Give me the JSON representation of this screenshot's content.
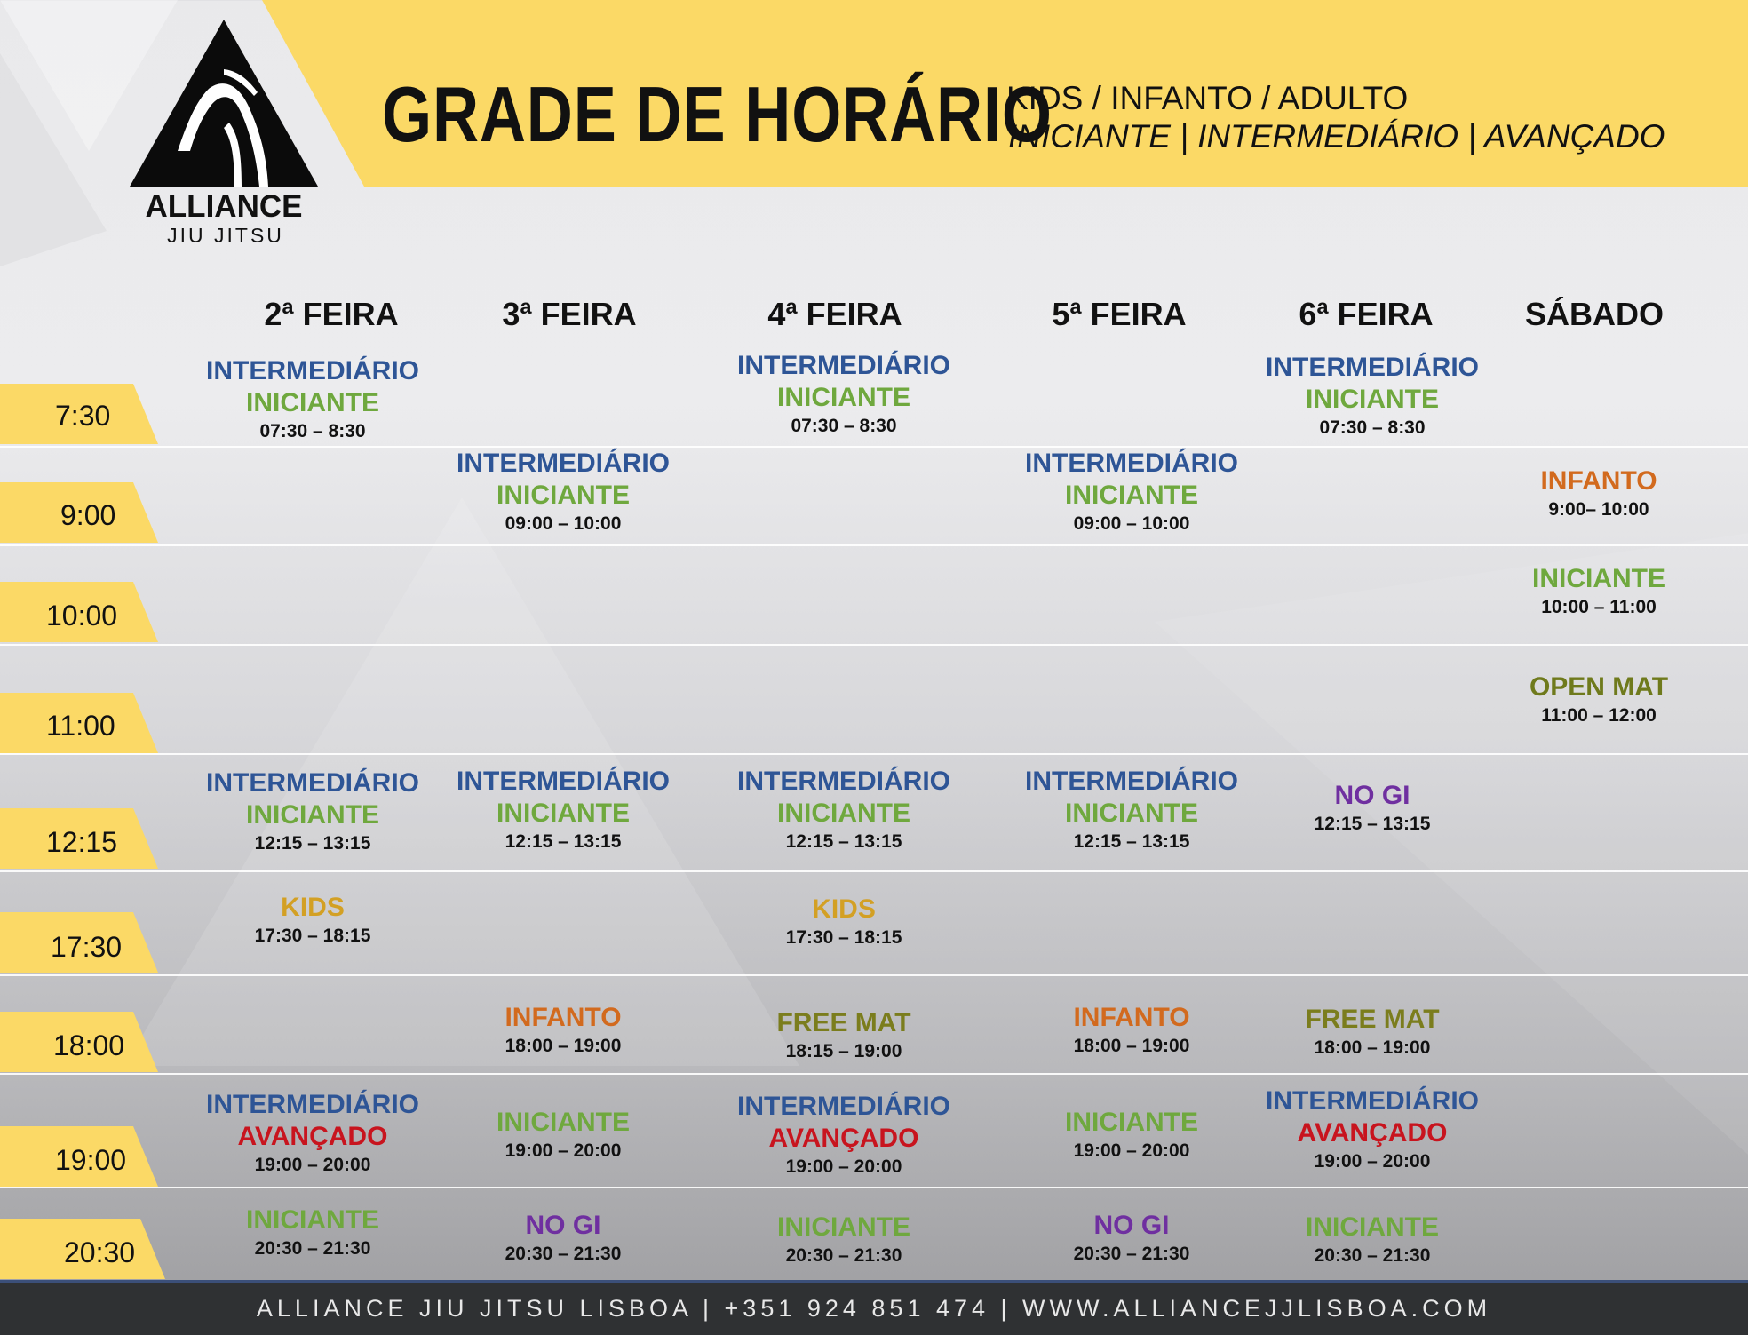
{
  "brand": {
    "name": "ALLIANCE",
    "tagline": "JIU JITSU"
  },
  "header": {
    "title": "GRADE DE HORÁRIO",
    "subtitle_levels": "KIDS / INFANTO / ADULTO",
    "subtitle_ranks": "INICIANTE | INTERMEDIÁRIO | AVANÇADO"
  },
  "days": [
    "2ª FEIRA",
    "3ª FEIRA",
    "4ª FEIRA",
    "5ª FEIRA",
    "6ª FEIRA",
    "SÁBADO"
  ],
  "times": [
    "7:30",
    "9:00",
    "10:00",
    "11:00",
    "12:15",
    "17:30",
    "18:00",
    "19:00",
    "20:30"
  ],
  "category_colors": {
    "INTERMEDIÁRIO": "#2e5596",
    "INICIANTE": "#6fa83e",
    "AVANÇADO": "#c8141e",
    "INFANTO": "#d26a1e",
    "KIDS": "#d3a024",
    "OPEN MAT": "#6f7a1c",
    "FREE MAT": "#7b7d1d",
    "NO GI": "#6f2fa0"
  },
  "accent_color": "#fbd966",
  "footer": {
    "text": "ALLIANCE JIU JITSU LISBOA | +351 924 851 474 | WWW.ALLIANCEJJLISBOA.COM"
  },
  "classes": [
    {
      "day": "2ª FEIRA",
      "slot": "7:30",
      "lines": [
        "INTERMEDIÁRIO",
        "INICIANTE"
      ],
      "time": "07:30 – 8:30"
    },
    {
      "day": "4ª FEIRA",
      "slot": "7:30",
      "lines": [
        "INTERMEDIÁRIO",
        "INICIANTE"
      ],
      "time": "07:30 – 8:30"
    },
    {
      "day": "6ª FEIRA",
      "slot": "7:30",
      "lines": [
        "INTERMEDIÁRIO",
        "INICIANTE"
      ],
      "time": "07:30 – 8:30"
    },
    {
      "day": "3ª FEIRA",
      "slot": "9:00",
      "lines": [
        "INTERMEDIÁRIO",
        "INICIANTE"
      ],
      "time": "09:00 – 10:00"
    },
    {
      "day": "5ª FEIRA",
      "slot": "9:00",
      "lines": [
        "INTERMEDIÁRIO",
        "INICIANTE"
      ],
      "time": "09:00 – 10:00"
    },
    {
      "day": "SÁBADO",
      "slot": "9:00",
      "lines": [
        "INFANTO"
      ],
      "time": "9:00– 10:00"
    },
    {
      "day": "SÁBADO",
      "slot": "10:00",
      "lines": [
        "INICIANTE"
      ],
      "time": "10:00 – 11:00"
    },
    {
      "day": "SÁBADO",
      "slot": "11:00",
      "lines": [
        "OPEN MAT"
      ],
      "time": "11:00 – 12:00"
    },
    {
      "day": "2ª FEIRA",
      "slot": "12:15",
      "lines": [
        "INTERMEDIÁRIO",
        "INICIANTE"
      ],
      "time": "12:15 – 13:15"
    },
    {
      "day": "3ª FEIRA",
      "slot": "12:15",
      "lines": [
        "INTERMEDIÁRIO",
        "INICIANTE"
      ],
      "time": "12:15 – 13:15"
    },
    {
      "day": "4ª FEIRA",
      "slot": "12:15",
      "lines": [
        "INTERMEDIÁRIO",
        "INICIANTE"
      ],
      "time": "12:15 – 13:15"
    },
    {
      "day": "5ª FEIRA",
      "slot": "12:15",
      "lines": [
        "INTERMEDIÁRIO",
        "INICIANTE"
      ],
      "time": "12:15 – 13:15"
    },
    {
      "day": "6ª FEIRA",
      "slot": "12:15",
      "lines": [
        "NO GI"
      ],
      "time": "12:15 – 13:15"
    },
    {
      "day": "2ª FEIRA",
      "slot": "17:30",
      "lines": [
        "KIDS"
      ],
      "time": "17:30 – 18:15"
    },
    {
      "day": "4ª FEIRA",
      "slot": "17:30",
      "lines": [
        "KIDS"
      ],
      "time": "17:30 – 18:15"
    },
    {
      "day": "3ª FEIRA",
      "slot": "18:00",
      "lines": [
        "INFANTO"
      ],
      "time": "18:00 – 19:00"
    },
    {
      "day": "4ª FEIRA",
      "slot": "18:00",
      "lines": [
        "FREE MAT"
      ],
      "time": "18:15 – 19:00"
    },
    {
      "day": "5ª FEIRA",
      "slot": "18:00",
      "lines": [
        "INFANTO"
      ],
      "time": "18:00 – 19:00"
    },
    {
      "day": "6ª FEIRA",
      "slot": "18:00",
      "lines": [
        "FREE MAT"
      ],
      "time": "18:00 – 19:00"
    },
    {
      "day": "2ª FEIRA",
      "slot": "19:00",
      "lines": [
        "INTERMEDIÁRIO",
        "AVANÇADO"
      ],
      "time": "19:00 – 20:00"
    },
    {
      "day": "3ª FEIRA",
      "slot": "19:00",
      "lines": [
        "INICIANTE"
      ],
      "time": "19:00 – 20:00"
    },
    {
      "day": "4ª FEIRA",
      "slot": "19:00",
      "lines": [
        "INTERMEDIÁRIO",
        "AVANÇADO"
      ],
      "time": "19:00 – 20:00"
    },
    {
      "day": "5ª FEIRA",
      "slot": "19:00",
      "lines": [
        "INICIANTE"
      ],
      "time": "19:00 – 20:00"
    },
    {
      "day": "6ª FEIRA",
      "slot": "19:00",
      "lines": [
        "INTERMEDIÁRIO",
        "AVANÇADO"
      ],
      "time": "19:00 – 20:00"
    },
    {
      "day": "2ª FEIRA",
      "slot": "20:30",
      "lines": [
        "INICIANTE"
      ],
      "time": "20:30 – 21:30"
    },
    {
      "day": "3ª FEIRA",
      "slot": "20:30",
      "lines": [
        "NO GI"
      ],
      "time": "20:30 – 21:30"
    },
    {
      "day": "4ª FEIRA",
      "slot": "20:30",
      "lines": [
        "INICIANTE"
      ],
      "time": "20:30 – 21:30"
    },
    {
      "day": "5ª FEIRA",
      "slot": "20:30",
      "lines": [
        "NO GI"
      ],
      "time": "20:30 – 21:30"
    },
    {
      "day": "6ª FEIRA",
      "slot": "20:30",
      "lines": [
        "INICIANTE"
      ],
      "time": "20:30 – 21:30"
    }
  ]
}
